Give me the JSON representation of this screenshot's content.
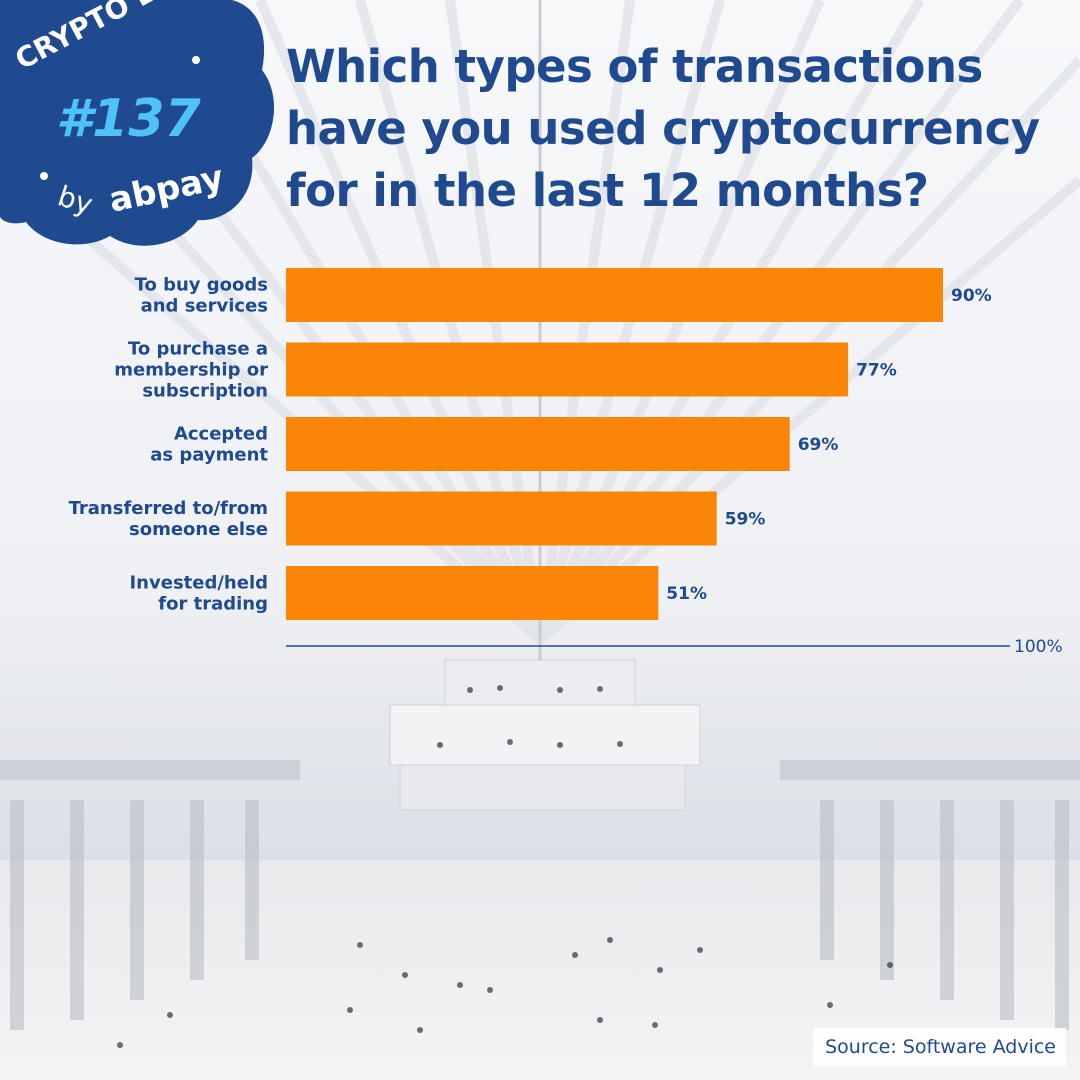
{
  "badge": {
    "series": "CRYPTO BITES",
    "number": "#137",
    "by": "by",
    "brand": "abpay"
  },
  "title": "Which types of transactions have you used cryptocurrency for in the last 12 months?",
  "source": "Source: Software Advice",
  "colors": {
    "bar": "#fa8507",
    "text": "#1f4a8f",
    "badge": "#1f4a8f",
    "badge_accent": "#4fc3f7"
  },
  "chart_data": {
    "type": "bar",
    "orientation": "horizontal",
    "categories": [
      [
        "To buy goods",
        "and services"
      ],
      [
        "To purchase a",
        "membership or",
        "subscription"
      ],
      [
        "Accepted",
        "as payment"
      ],
      [
        "Transferred to/from",
        "someone else"
      ],
      [
        "Invested/held",
        "for trading"
      ]
    ],
    "values": [
      90,
      77,
      69,
      59,
      51
    ],
    "value_labels": [
      "90%",
      "77%",
      "69%",
      "59%",
      "51%"
    ],
    "xlim": [
      0,
      100
    ],
    "axis_end_label": "100%",
    "grid": false
  }
}
